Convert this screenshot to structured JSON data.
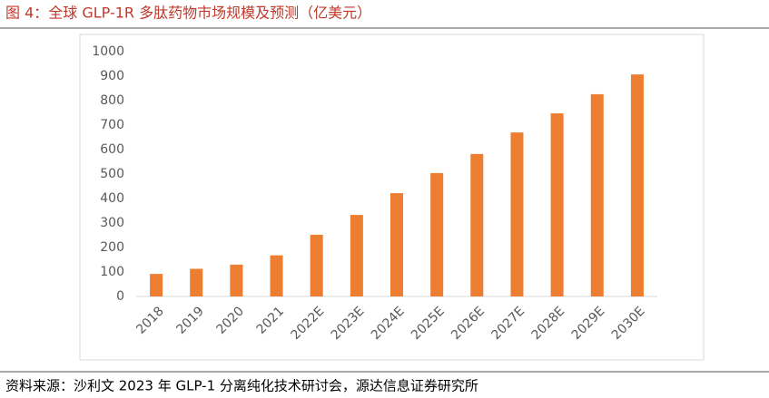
{
  "chart_data": {
    "type": "bar",
    "title": "图 4：全球 GLP-1R 多肽药物市场规模及预测（亿美元）",
    "categories": [
      "2018",
      "2019",
      "2020",
      "2021",
      "2022E",
      "2023E",
      "2024E",
      "2025E",
      "2026E",
      "2027E",
      "2028E",
      "2029E",
      "2030E"
    ],
    "values": [
      92,
      113,
      130,
      168,
      252,
      333,
      422,
      504,
      582,
      670,
      748,
      826,
      907
    ],
    "color": "#ed7d31",
    "ylim": [
      0,
      1000
    ],
    "yticks": [
      0,
      100,
      200,
      300,
      400,
      500,
      600,
      700,
      800,
      900,
      1000
    ],
    "grid": false
  },
  "source": "资料来源：沙利文 2023 年 GLP-1 分离纯化技术研讨会，源达信息证券研究所"
}
